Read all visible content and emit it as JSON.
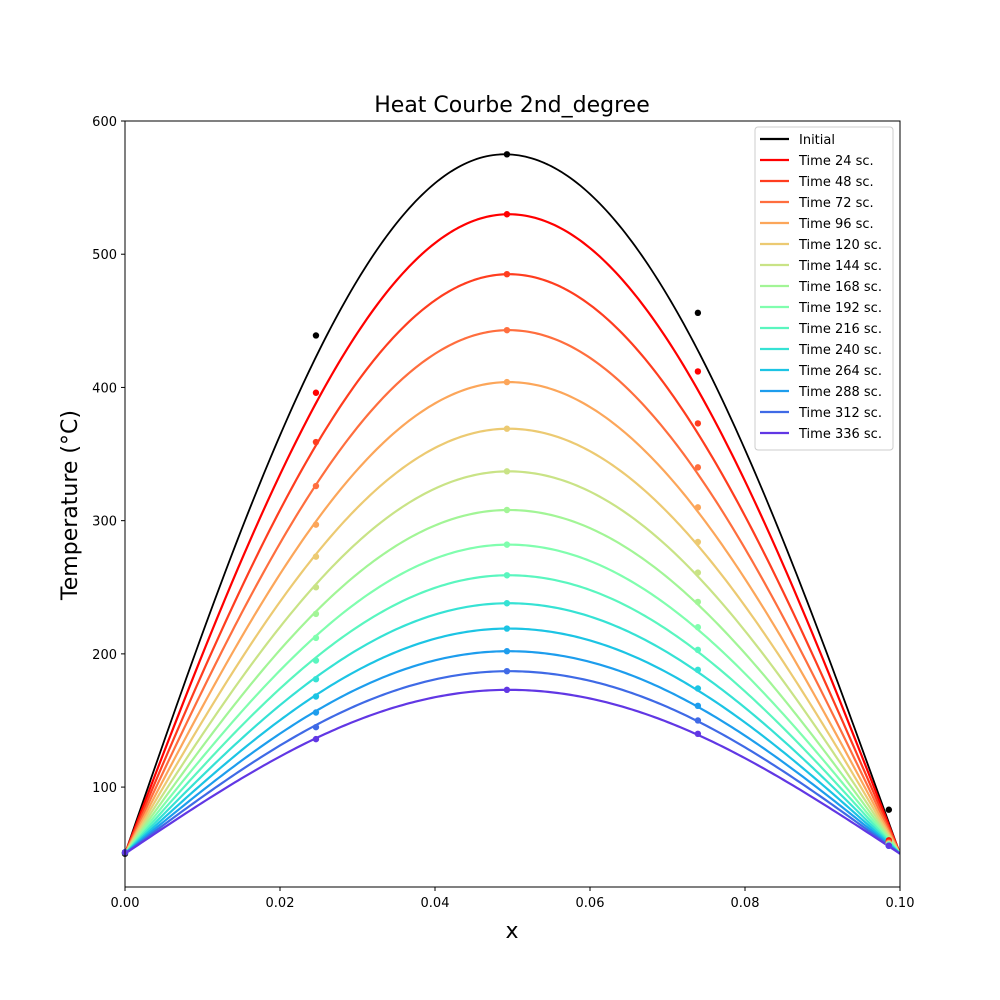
{
  "chart_data": {
    "type": "line",
    "title": "Heat Courbe 2nd_degree",
    "xlabel": "x",
    "ylabel": "Temperature (°C)",
    "xlim": [
      0.0,
      0.1
    ],
    "ylim": [
      25,
      600
    ],
    "x_ticks": [
      "0.00",
      "0.02",
      "0.04",
      "0.06",
      "0.08",
      "0.10"
    ],
    "y_ticks": [
      "100",
      "200",
      "300",
      "400",
      "500",
      "600"
    ],
    "grid": false,
    "legend_position": "top-right",
    "curve": {
      "x_start": 0.0,
      "x_end": 0.1,
      "boundary_value": 50,
      "marker_x": [
        0.0,
        0.02464,
        0.04928,
        0.07392,
        0.09856
      ]
    },
    "series": [
      {
        "name": "Initial",
        "color": "#000000",
        "peak": 575,
        "x_peak": 0.049,
        "markers": [
          50,
          439,
          575,
          456,
          83
        ]
      },
      {
        "name": "Time 24 sc.",
        "color": "#ff0000",
        "peak": 530,
        "x_peak": 0.0495,
        "markers": [
          51,
          396,
          530,
          412,
          60
        ]
      },
      {
        "name": "Time 48 sc.",
        "color": "#ff3d1f",
        "peak": 485,
        "x_peak": 0.0495,
        "markers": [
          51,
          359,
          485,
          373,
          59
        ]
      },
      {
        "name": "Time 72 sc.",
        "color": "#ff6e3e",
        "peak": 443,
        "x_peak": 0.0495,
        "markers": [
          51,
          326,
          443,
          340,
          58
        ]
      },
      {
        "name": "Time 96 sc.",
        "color": "#fca65a",
        "peak": 404,
        "x_peak": 0.0495,
        "markers": [
          51,
          297,
          404,
          310,
          58
        ]
      },
      {
        "name": "Time 120 sc.",
        "color": "#ecca72",
        "peak": 369,
        "x_peak": 0.0495,
        "markers": [
          51,
          273,
          369,
          284,
          57
        ]
      },
      {
        "name": "Time 144 sc.",
        "color": "#c9e386",
        "peak": 337,
        "x_peak": 0.0495,
        "markers": [
          51,
          250,
          337,
          261,
          57
        ]
      },
      {
        "name": "Time 168 sc.",
        "color": "#a2f596",
        "peak": 308,
        "x_peak": 0.0495,
        "markers": [
          51,
          230,
          308,
          239,
          57
        ]
      },
      {
        "name": "Time 192 sc.",
        "color": "#80feae",
        "peak": 282,
        "x_peak": 0.0495,
        "markers": [
          51,
          212,
          282,
          220,
          57
        ]
      },
      {
        "name": "Time 216 sc.",
        "color": "#5af6bf",
        "peak": 259,
        "x_peak": 0.0495,
        "markers": [
          51,
          195,
          259,
          203,
          56
        ]
      },
      {
        "name": "Time 240 sc.",
        "color": "#36e2d4",
        "peak": 238,
        "x_peak": 0.0495,
        "markers": [
          51,
          181,
          238,
          188,
          56
        ]
      },
      {
        "name": "Time 264 sc.",
        "color": "#1cc4e4",
        "peak": 219,
        "x_peak": 0.0495,
        "markers": [
          51,
          168,
          219,
          174,
          56
        ]
      },
      {
        "name": "Time 288 sc.",
        "color": "#1d9ded",
        "peak": 202,
        "x_peak": 0.0495,
        "markers": [
          51,
          156,
          202,
          161,
          56
        ]
      },
      {
        "name": "Time 312 sc.",
        "color": "#3f6ae6",
        "peak": 187,
        "x_peak": 0.0495,
        "markers": [
          51,
          145,
          187,
          150,
          56
        ]
      },
      {
        "name": "Time 336 sc.",
        "color": "#6137e4",
        "peak": 173,
        "x_peak": 0.0495,
        "markers": [
          51,
          136,
          173,
          140,
          56
        ]
      }
    ]
  }
}
